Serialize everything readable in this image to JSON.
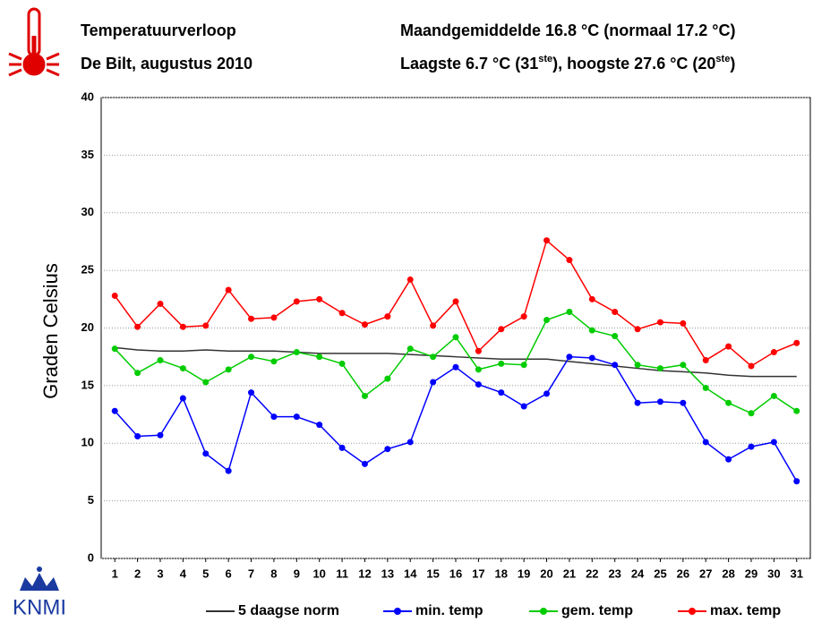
{
  "chart_data": {
    "type": "line",
    "title": "Temperatuurverloop",
    "subtitle": "De Bilt, augustus 2010",
    "info_1": "Maandgemiddelde 16.8 °C (normaal 17.2 °C)",
    "info_2": [
      "Laagste 6.7 °C (31",
      "ste",
      "), hoogste 27.6 °C (20",
      "ste",
      ")"
    ],
    "logo": "KNMI",
    "ylabel": "Graden Celsius",
    "x": [
      1,
      2,
      3,
      4,
      5,
      6,
      7,
      8,
      9,
      10,
      11,
      12,
      13,
      14,
      15,
      16,
      17,
      18,
      19,
      20,
      21,
      22,
      23,
      24,
      25,
      26,
      27,
      28,
      29,
      30,
      31
    ],
    "xlim": [
      0.4,
      31.6
    ],
    "xticks": [
      1,
      2,
      3,
      4,
      5,
      6,
      7,
      8,
      9,
      10,
      11,
      12,
      13,
      14,
      15,
      16,
      17,
      18,
      19,
      20,
      21,
      22,
      23,
      24,
      25,
      26,
      27,
      28,
      29,
      30,
      31
    ],
    "ylim": [
      0,
      40
    ],
    "yticks": [
      0,
      5,
      10,
      15,
      20,
      25,
      30,
      35,
      40
    ],
    "grid": true,
    "legend": "bottom",
    "series": [
      {
        "name": "5 daagse norm",
        "color": "#333333",
        "markers": false,
        "values": [
          18.3,
          18.1,
          18.0,
          18.0,
          18.1,
          18.0,
          18.0,
          18.0,
          17.9,
          17.8,
          17.8,
          17.8,
          17.8,
          17.7,
          17.6,
          17.5,
          17.4,
          17.3,
          17.3,
          17.3,
          17.1,
          16.9,
          16.7,
          16.5,
          16.3,
          16.2,
          16.1,
          15.9,
          15.8,
          15.8,
          15.8
        ]
      },
      {
        "name": "min. temp",
        "color": "#0000ff",
        "markers": true,
        "values": [
          12.8,
          10.6,
          10.7,
          13.9,
          9.1,
          7.6,
          14.4,
          12.3,
          12.3,
          11.6,
          9.6,
          8.2,
          9.5,
          10.1,
          15.3,
          16.6,
          15.1,
          14.4,
          13.2,
          14.3,
          17.5,
          17.4,
          16.8,
          13.5,
          13.6,
          13.5,
          10.1,
          8.6,
          9.7,
          10.1,
          6.7
        ]
      },
      {
        "name": "gem. temp",
        "color": "#00cc00",
        "markers": true,
        "values": [
          18.2,
          16.1,
          17.2,
          16.5,
          15.3,
          16.4,
          17.5,
          17.1,
          17.9,
          17.5,
          16.9,
          14.1,
          15.6,
          18.2,
          17.5,
          19.2,
          16.4,
          16.9,
          16.8,
          20.7,
          21.4,
          19.8,
          19.3,
          16.8,
          16.5,
          16.8,
          14.8,
          13.5,
          12.6,
          14.1,
          12.8
        ]
      },
      {
        "name": "max. temp",
        "color": "#ff0000",
        "markers": true,
        "values": [
          22.8,
          20.1,
          22.1,
          20.1,
          20.2,
          23.3,
          20.8,
          20.9,
          22.3,
          22.5,
          21.3,
          20.3,
          21.0,
          24.2,
          20.2,
          22.3,
          18.0,
          19.9,
          21.0,
          27.6,
          25.9,
          22.5,
          21.4,
          19.9,
          20.5,
          20.4,
          17.2,
          18.4,
          16.7,
          17.9,
          18.7
        ]
      }
    ]
  }
}
